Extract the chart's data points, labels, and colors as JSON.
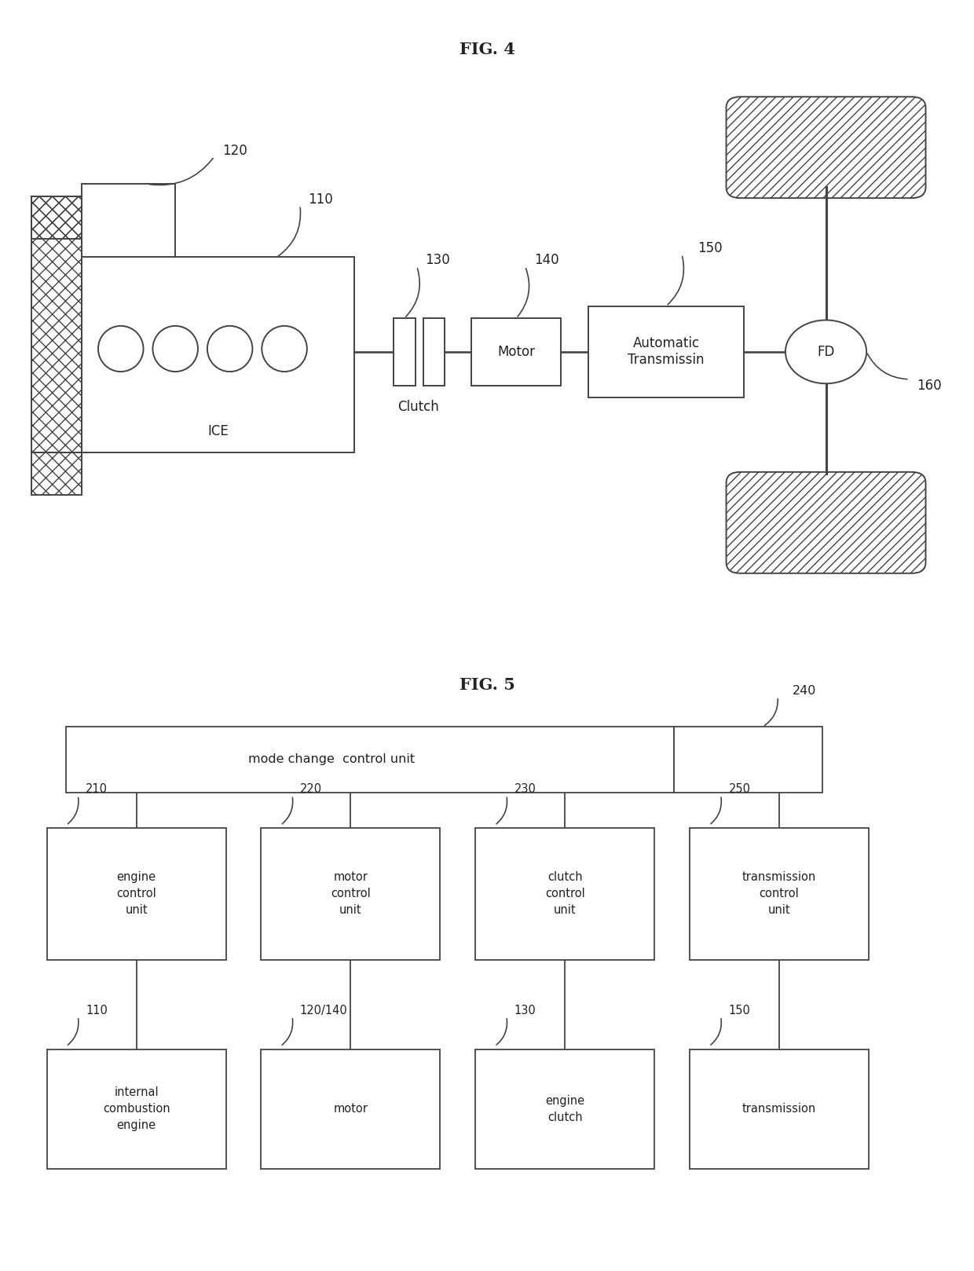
{
  "fig4_title": "FIG. 4",
  "fig5_title": "FIG. 5",
  "bg_color": "#ffffff",
  "line_color": "#444444",
  "text_color": "#222222",
  "fig4": {
    "ice_label": "ICE",
    "clutch_label": "Clutch",
    "motor_label": "Motor",
    "at_label": "Automatic\nTransmissin",
    "fd_label": "FD",
    "ref_110": "110",
    "ref_120": "120",
    "ref_130": "130",
    "ref_140": "140",
    "ref_150": "150",
    "ref_160": "160"
  },
  "fig5": {
    "top_box_label": "mode change  control unit",
    "top_box_ref": "240",
    "mid_boxes": [
      {
        "label": "engine\ncontrol\nunit",
        "ref": "210"
      },
      {
        "label": "motor\ncontrol\nunit",
        "ref": "220"
      },
      {
        "label": "clutch\ncontrol\nunit",
        "ref": "230"
      },
      {
        "label": "transmission\ncontrol\nunit",
        "ref": "250"
      }
    ],
    "bot_boxes": [
      {
        "label": "internal\ncombustion\nengine",
        "ref": "110"
      },
      {
        "label": "motor",
        "ref": "120/140"
      },
      {
        "label": "engine\nclutch",
        "ref": "130"
      },
      {
        "label": "transmission",
        "ref": "150"
      }
    ]
  }
}
